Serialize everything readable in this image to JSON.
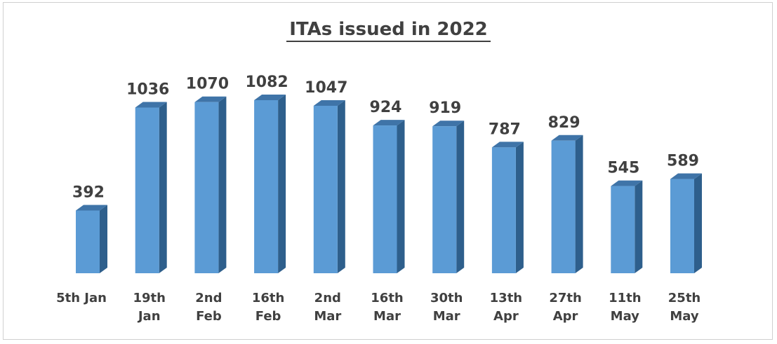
{
  "chart_data": {
    "type": "bar",
    "title": "ITAs issued in 2022",
    "xlabel": "",
    "ylabel": "",
    "categories": [
      [
        "5th Jan"
      ],
      [
        "19th",
        "Jan"
      ],
      [
        "2nd",
        "Feb"
      ],
      [
        "16th",
        "Feb"
      ],
      [
        "2nd",
        "Mar"
      ],
      [
        "16th",
        "Mar"
      ],
      [
        "30th",
        "Mar"
      ],
      [
        "13th",
        "Apr"
      ],
      [
        "27th",
        "Apr"
      ],
      [
        "11th",
        "May"
      ],
      [
        "25th",
        "May"
      ]
    ],
    "values": [
      392,
      1036,
      1070,
      1082,
      1047,
      924,
      919,
      787,
      829,
      545,
      589
    ],
    "data_labels": [
      "392",
      "1036",
      "1070",
      "1082",
      "1047",
      "924",
      "919",
      "787",
      "829",
      "545",
      "589"
    ],
    "ylim": [
      0,
      1200
    ],
    "grid": false,
    "legend": "none",
    "colors": {
      "bar_front": "#5b9bd5",
      "bar_side": "#2e5f8c",
      "bar_top": "#3f74a8",
      "text": "#404040",
      "frame": "#d0d0d0"
    }
  }
}
